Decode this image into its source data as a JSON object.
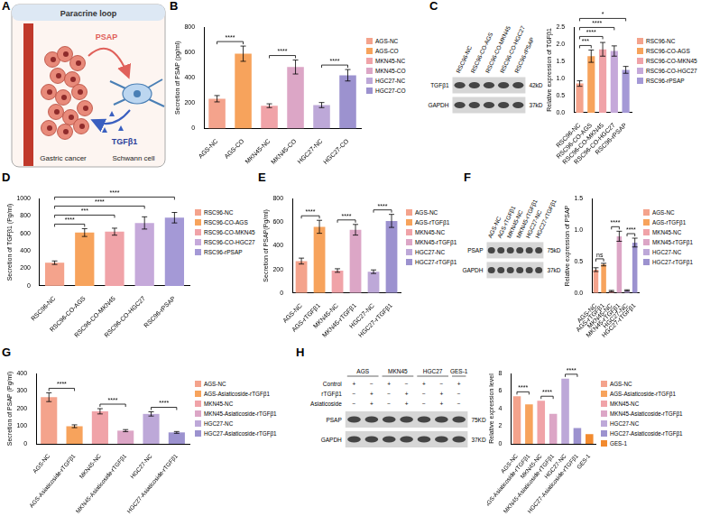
{
  "panel_A": {
    "panel": "A",
    "title": "Paracrine loop",
    "signal_1": "PSAP",
    "signal_2": "TGFβ1",
    "cell_1": "Gastric cancer",
    "cell_2": "Schwann cell"
  },
  "blots": [
    {
      "panel": "C",
      "lanes": [
        "RSC96-NC",
        "RSC96-CO-AGS",
        "RSC96-CO-MKN45",
        "RSC96-CO-HGC27",
        "RSC96-rPSAP"
      ],
      "rows": [
        {
          "protein": "TGFβ1",
          "size": "42kD"
        },
        {
          "protein": "GAPDH",
          "size": "37kD"
        }
      ]
    },
    {
      "panel": "F",
      "lanes": [
        "AGS-NC",
        "AGS-rTGFβ1",
        "MKN45-NC",
        "MKN45-rTGFβ1",
        "HGC27-NC",
        "HGC27-rTGFβ1"
      ],
      "rows": [
        {
          "protein": "PSAP",
          "size": "75kD"
        },
        {
          "protein": "GAPDH",
          "size": "37kD"
        }
      ]
    },
    {
      "panel": "H",
      "groups": [
        {
          "name": "AGS",
          "lanes": 2
        },
        {
          "name": "MKN45",
          "lanes": 2
        },
        {
          "name": "HGC27",
          "lanes": 2
        },
        {
          "name": "GES-1",
          "lanes": 1
        }
      ],
      "treatments": [
        {
          "name": "Control",
          "marks": [
            "+",
            "−",
            "+",
            "−",
            "+",
            "−",
            "+"
          ]
        },
        {
          "name": "rTGFβ1",
          "marks": [
            "−",
            "+",
            "−",
            "+",
            "−",
            "+",
            "−"
          ]
        },
        {
          "name": "Asiaticoside",
          "marks": [
            "−",
            "+",
            "−",
            "+",
            "−",
            "+",
            "−"
          ]
        }
      ],
      "rows": [
        {
          "protein": "PSAP",
          "size": "75KD"
        },
        {
          "protein": "GAPDH",
          "size": "37KD"
        }
      ]
    }
  ],
  "chart_data": [
    {
      "panel": "B",
      "type": "bar",
      "y_label": "Secretion of PSAP (pg/ml)",
      "categories": [
        "AGS-NC",
        "AGS-CO",
        "MKN45-NC",
        "MKN45-CO",
        "HGC27-NC",
        "HGC27-CO"
      ],
      "values": [
        235,
        590,
        180,
        485,
        185,
        420
      ],
      "errors": [
        25,
        60,
        15,
        55,
        20,
        45
      ],
      "colors": [
        "#F4A38C",
        "#F7A35C",
        "#F0A3A8",
        "#DCA6C6",
        "#BDA8D8",
        "#9C92CF"
      ],
      "ylim": [
        0,
        800
      ],
      "yticks": [
        0,
        200,
        400,
        600,
        800
      ],
      "significance": [
        {
          "pair": [
            0,
            1
          ],
          "label": "****"
        },
        {
          "pair": [
            2,
            3
          ],
          "label": "****"
        },
        {
          "pair": [
            4,
            5
          ],
          "label": "****"
        }
      ],
      "legend": "right",
      "grid": false
    },
    {
      "panel": "C",
      "type": "bar",
      "y_label": "Relative expression of TGFβ1",
      "categories": [
        "RSC96-NC",
        "RSC96-CO-AGS",
        "RSC96-CO-MKN45",
        "RSC96-CO-HGC27",
        "RSC96-rPSAP"
      ],
      "values": [
        0.85,
        1.65,
        1.85,
        1.8,
        1.25
      ],
      "errors": [
        0.08,
        0.18,
        0.2,
        0.15,
        0.1
      ],
      "colors": [
        "#F4A38C",
        "#F7A35C",
        "#F0A3A8",
        "#C5A9DA",
        "#A499D6"
      ],
      "ylim": [
        0,
        2.5
      ],
      "yticks": [
        {
          "value": 0,
          "label": "0.0"
        },
        0.5,
        {
          "value": 1,
          "label": "1.0"
        },
        1.5,
        {
          "value": 2,
          "label": "2.0"
        },
        2.5
      ],
      "significance": [
        {
          "pair": [
            0,
            1
          ],
          "label": "***"
        },
        {
          "pair": [
            0,
            2
          ],
          "label": "****"
        },
        {
          "pair": [
            0,
            3
          ],
          "label": "****"
        },
        {
          "pair": [
            0,
            4
          ],
          "label": "*"
        }
      ],
      "legend": "right",
      "grid": false
    },
    {
      "panel": "D",
      "type": "bar",
      "y_label": "Secretion of TGFβ1 (Pg/ml)",
      "categories": [
        "RSC96-NC",
        "RSC96-CO-AGS",
        "RSC96-CO-MKN45",
        "RSC96-CO-HGC27",
        "RSC96-rPSAP"
      ],
      "values": [
        265,
        610,
        620,
        720,
        780
      ],
      "errors": [
        20,
        45,
        40,
        70,
        60
      ],
      "colors": [
        "#F4A38C",
        "#F7A35C",
        "#F0A3A8",
        "#C5A9DA",
        "#A499D6"
      ],
      "ylim": [
        0,
        1000
      ],
      "yticks": [
        0,
        200,
        400,
        600,
        800,
        1000
      ],
      "significance": [
        {
          "pair": [
            0,
            1
          ],
          "label": "****"
        },
        {
          "pair": [
            0,
            2
          ],
          "label": "***"
        },
        {
          "pair": [
            0,
            3
          ],
          "label": "****"
        },
        {
          "pair": [
            0,
            4
          ],
          "label": "****"
        }
      ],
      "legend": "right",
      "grid": false
    },
    {
      "panel": "E",
      "type": "bar",
      "y_label": "Secretion of PSAP(Pg/ml)",
      "categories": [
        "AGS-NC",
        "AGS-rTGFβ1",
        "MKN45-NC",
        "MKN45-rTGFβ1",
        "HGC27-NC",
        "HGC27-rTGFβ1"
      ],
      "values": [
        270,
        560,
        190,
        535,
        180,
        610
      ],
      "errors": [
        25,
        55,
        15,
        45,
        15,
        55
      ],
      "colors": [
        "#F4A38C",
        "#F7A35C",
        "#F0A3A8",
        "#DCA6C6",
        "#BDA8D8",
        "#9C92CF"
      ],
      "ylim": [
        0,
        800
      ],
      "yticks": [
        0,
        200,
        400,
        600,
        800
      ],
      "significance": [
        {
          "pair": [
            0,
            1
          ],
          "label": "****"
        },
        {
          "pair": [
            2,
            3
          ],
          "label": "****"
        },
        {
          "pair": [
            4,
            5
          ],
          "label": "****"
        }
      ],
      "legend": "right",
      "grid": false
    },
    {
      "panel": "F",
      "type": "bar",
      "y_label": "Relative expression of PSAP",
      "categories": [
        "AGS-NC",
        "AGS-rTGFβ1",
        "MKN45-NC",
        "MKN45-rTGFβ1",
        "HGC27-NC",
        "HGC27-rTGFβ1"
      ],
      "values": [
        0.37,
        0.45,
        0.03,
        0.9,
        0.04,
        0.8
      ],
      "errors": [
        0.03,
        0.02,
        0.01,
        0.08,
        0.01,
        0.07
      ],
      "colors": [
        "#F4A38C",
        "#F7A35C",
        "#F0A3A8",
        "#DCA6C6",
        "#BDA8D8",
        "#9C92CF"
      ],
      "ylim": [
        0,
        1.5
      ],
      "yticks": [
        {
          "value": 0,
          "label": "0.0"
        },
        0.5,
        {
          "value": 1,
          "label": "1.0"
        },
        1.5
      ],
      "significance": [
        {
          "pair": [
            0,
            1
          ],
          "label": "ns"
        },
        {
          "pair": [
            2,
            3
          ],
          "label": "****"
        },
        {
          "pair": [
            4,
            5
          ],
          "label": "****"
        }
      ],
      "legend": "right",
      "grid": false
    },
    {
      "panel": "G",
      "type": "bar",
      "y_label": "Secretion of PSAP (Pg/ml)",
      "categories": [
        "AGS-NC",
        "AGS-Asiaticoside-rTGFβ1",
        "MKN45-NC",
        "MKN45-Asiaticoside-rTGFβ1",
        "HGC27-NC",
        "HGC27-Asiaticoside-rTGFβ1"
      ],
      "values": [
        265,
        100,
        185,
        75,
        170,
        65
      ],
      "errors": [
        25,
        8,
        15,
        6,
        12,
        5
      ],
      "colors": [
        "#F4A38C",
        "#F7A35C",
        "#F0A3A8",
        "#DCA6C6",
        "#BDA8D8",
        "#9C92CF"
      ],
      "ylim": [
        0,
        400
      ],
      "yticks": [
        0,
        100,
        200,
        300,
        400
      ],
      "significance": [
        {
          "pair": [
            0,
            1
          ],
          "label": "****"
        },
        {
          "pair": [
            2,
            3
          ],
          "label": "****"
        },
        {
          "pair": [
            4,
            5
          ],
          "label": "****"
        }
      ],
      "legend": "right",
      "grid": false
    },
    {
      "panel": "H",
      "type": "bar",
      "y_label": "Relative expression level",
      "categories": [
        "AGS-NC",
        "AGS-Asiaticoside-rTGFβ1",
        "MKN45-NC",
        "MKN45-Asiaticoside-rTGFβ1",
        "HGC27-NC",
        "HGC27-Asiaticoside-rTGFβ1",
        "GES-1"
      ],
      "values": [
        5.4,
        4.5,
        4.9,
        3.4,
        7.4,
        1.8,
        1.1
      ],
      "colors": [
        "#F4A38C",
        "#F7A35C",
        "#F0A3A8",
        "#DCA6C6",
        "#BDA8D8",
        "#9C92CF",
        "#F28A2E"
      ],
      "ylim": [
        0,
        8
      ],
      "yticks": [
        0,
        2,
        4,
        6,
        8
      ],
      "significance": [
        {
          "pair": [
            0,
            1
          ],
          "label": "****"
        },
        {
          "pair": [
            2,
            3
          ],
          "label": "****"
        },
        {
          "pair": [
            4,
            5
          ],
          "label": "****"
        }
      ],
      "legend": "right",
      "grid": false
    }
  ]
}
